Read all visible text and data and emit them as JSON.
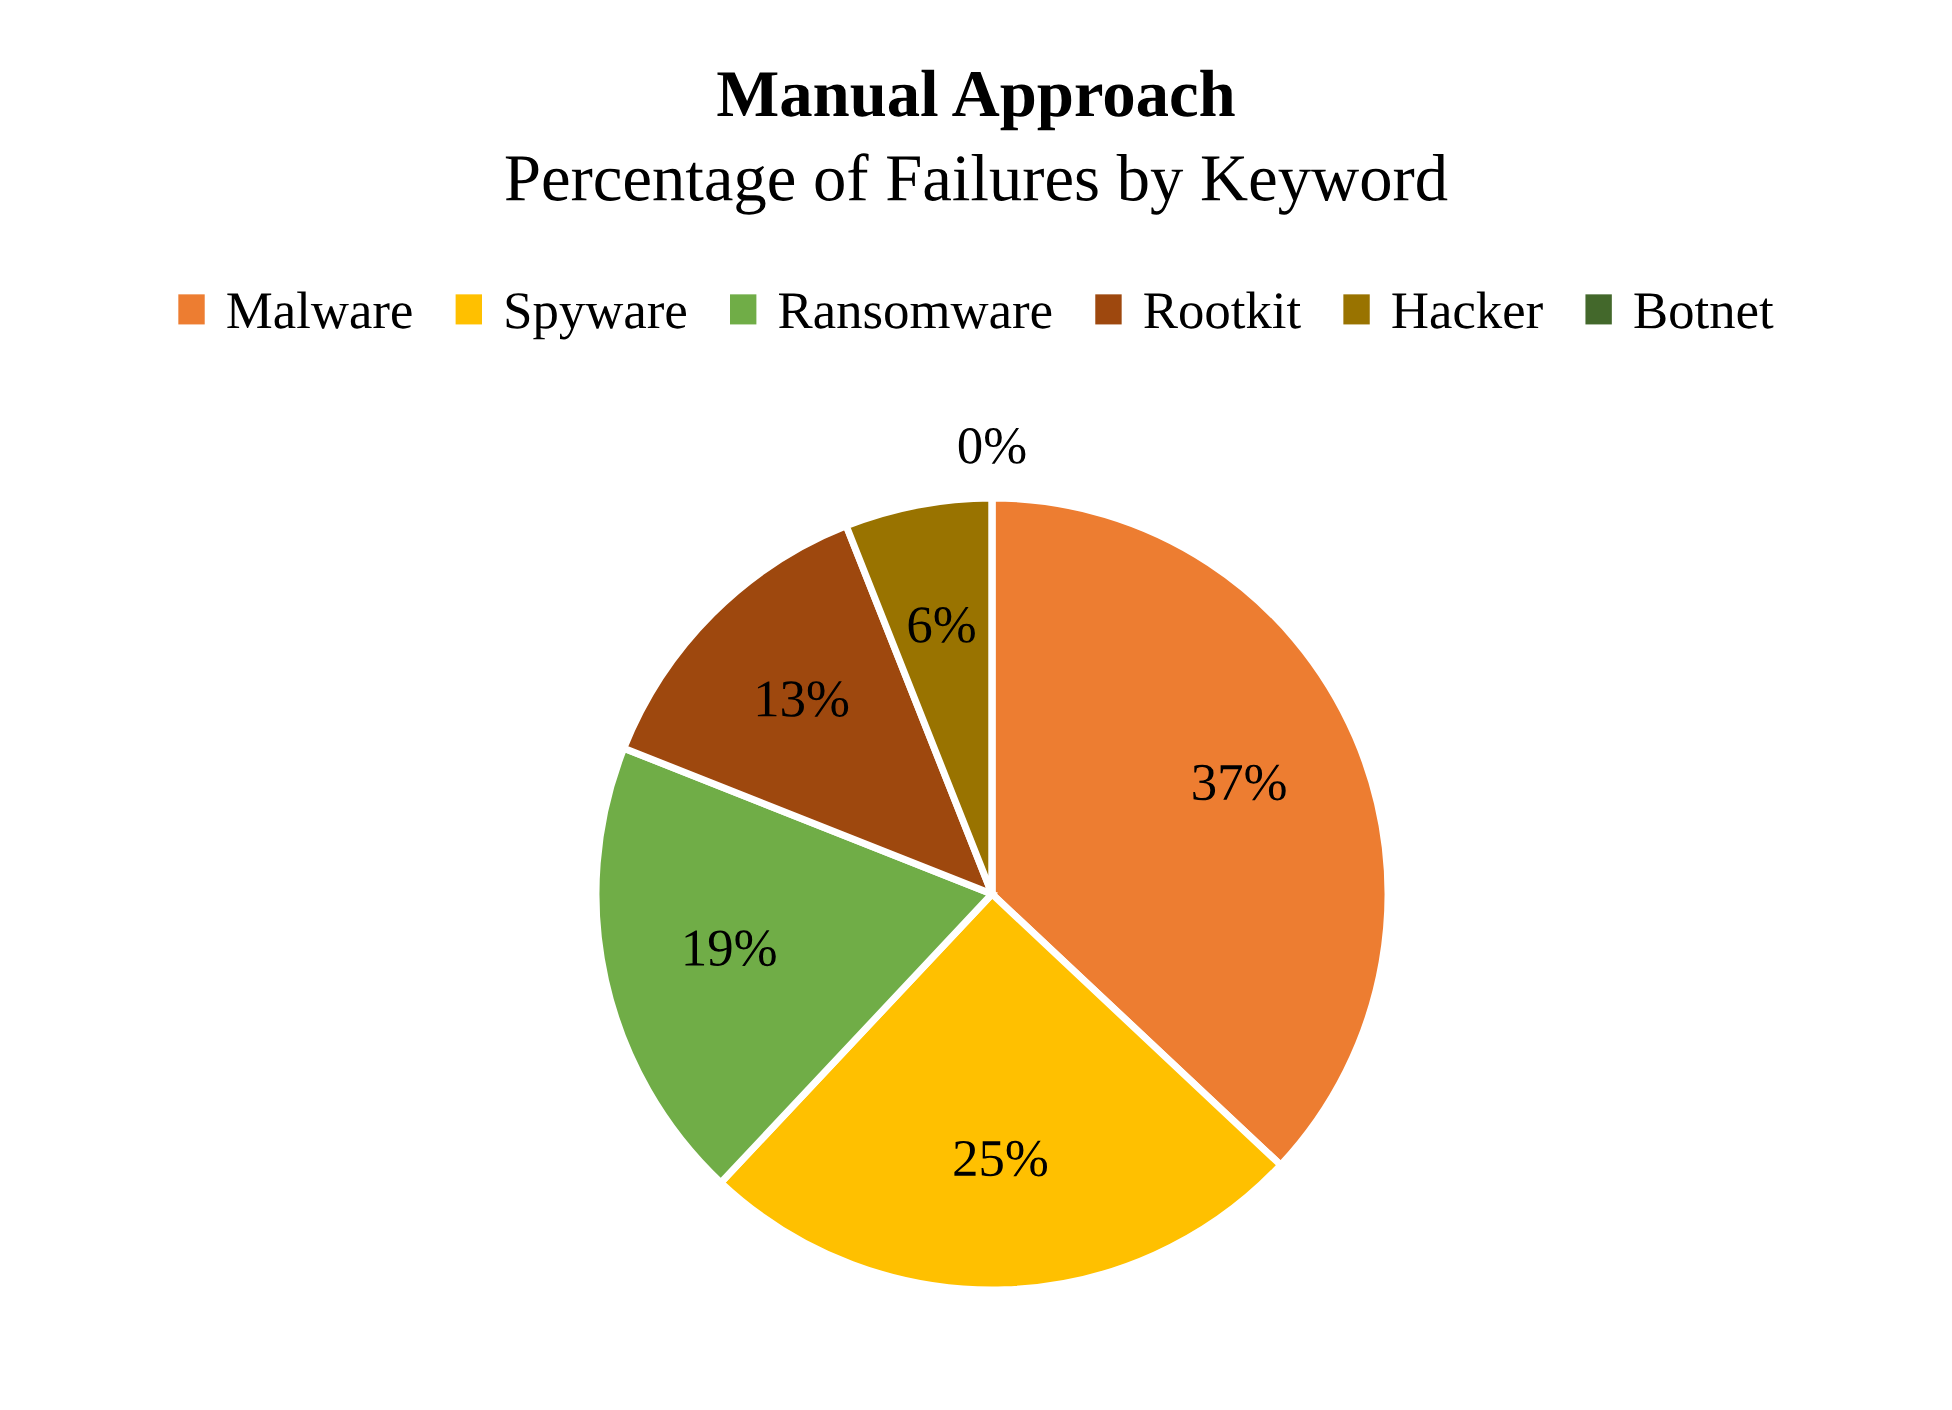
{
  "chart_data": {
    "type": "pie",
    "title": "Manual Approach",
    "subtitle": "Percentage of Failures by Keyword",
    "categories": [
      "Malware",
      "Spyware",
      "Ransomware",
      "Rootkit",
      "Hacker",
      "Botnet"
    ],
    "values": [
      37,
      25,
      19,
      13,
      6,
      0
    ],
    "colors": [
      "#ed7d31",
      "#ffc000",
      "#70ad47",
      "#9e480e",
      "#997300",
      "#43682b"
    ],
    "value_labels": [
      "37%",
      "25%",
      "19%",
      "13%",
      "6%",
      "0%"
    ],
    "legend": "top"
  }
}
